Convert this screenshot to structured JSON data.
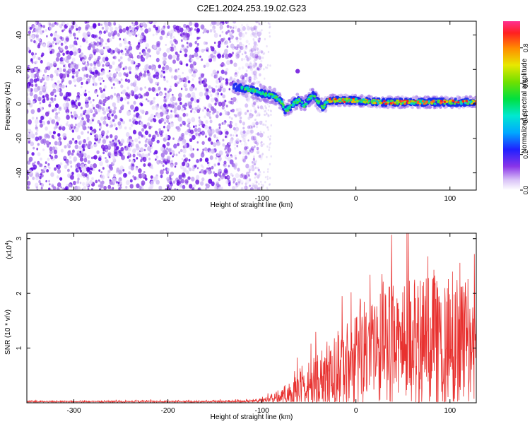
{
  "title": "C2E1.2024.253.19.02.G23",
  "chart_data": [
    {
      "type": "heatmap",
      "xlabel": "Height of straight line (km)",
      "ylabel": "Frequency (Hz)",
      "xlim": [
        -350,
        128
      ],
      "ylim": [
        -50,
        48
      ],
      "xticks": [
        -300,
        -200,
        -100,
        0,
        100
      ],
      "yticks": [
        -40,
        -20,
        0,
        20,
        40
      ],
      "noise_region_x": [
        -350,
        -110
      ],
      "signal_track": [
        {
          "x": -130,
          "y": 10
        },
        {
          "x": -120,
          "y": 9
        },
        {
          "x": -110,
          "y": 8
        },
        {
          "x": -100,
          "y": 6
        },
        {
          "x": -90,
          "y": 5
        },
        {
          "x": -80,
          "y": 2
        },
        {
          "x": -75,
          "y": -4
        },
        {
          "x": -70,
          "y": -2
        },
        {
          "x": -65,
          "y": 1
        },
        {
          "x": -60,
          "y": 2
        },
        {
          "x": -55,
          "y": -1
        },
        {
          "x": -50,
          "y": 3
        },
        {
          "x": -45,
          "y": 5
        },
        {
          "x": -40,
          "y": 1
        },
        {
          "x": -35,
          "y": -2
        },
        {
          "x": -30,
          "y": 2
        },
        {
          "x": -20,
          "y": 2
        },
        {
          "x": 0,
          "y": 2
        },
        {
          "x": 30,
          "y": 1
        },
        {
          "x": 60,
          "y": 1
        },
        {
          "x": 90,
          "y": 1
        },
        {
          "x": 128,
          "y": 1
        }
      ],
      "outlier_point": {
        "x": -62,
        "y": 19
      },
      "colorbar": {
        "label": "Normalized spectral amplitude",
        "range": [
          0,
          0.95
        ],
        "ticks": [
          "0.0",
          "0.2",
          "0.4",
          "0.6",
          "0.8"
        ]
      }
    },
    {
      "type": "line",
      "xlabel": "Height of straight line (km)",
      "ylabel": "SNR (10 * v/v)",
      "scale_label": "(x10",
      "scale_exp": "4",
      "scale_close": ")",
      "xlim": [
        -350,
        128
      ],
      "ylim": [
        0,
        3.1
      ],
      "xticks": [
        -300,
        -200,
        -100,
        0,
        100
      ],
      "yticks": [
        1,
        2,
        3
      ],
      "series": [
        {
          "color": "#e8312f",
          "envelope": [
            {
              "x": -350,
              "base": 0.02,
              "amp": 0.02
            },
            {
              "x": -120,
              "base": 0.02,
              "amp": 0.03
            },
            {
              "x": -100,
              "base": 0.04,
              "amp": 0.06
            },
            {
              "x": -80,
              "base": 0.1,
              "amp": 0.15
            },
            {
              "x": -60,
              "base": 0.22,
              "amp": 0.45
            },
            {
              "x": -40,
              "base": 0.35,
              "amp": 0.7
            },
            {
              "x": -20,
              "base": 0.55,
              "amp": 0.95
            },
            {
              "x": 0,
              "base": 0.8,
              "amp": 1.2
            },
            {
              "x": 20,
              "base": 1.0,
              "amp": 1.4
            },
            {
              "x": 40,
              "base": 1.1,
              "amp": 1.55
            },
            {
              "x": 60,
              "base": 1.1,
              "amp": 1.6
            },
            {
              "x": 80,
              "base": 1.1,
              "amp": 1.55
            },
            {
              "x": 100,
              "base": 1.05,
              "amp": 1.45
            },
            {
              "x": 128,
              "base": 1.0,
              "amp": 1.35
            }
          ]
        }
      ]
    }
  ]
}
